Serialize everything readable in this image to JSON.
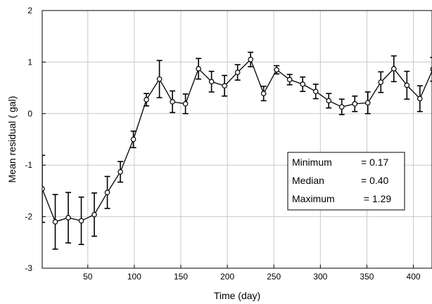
{
  "chart_data": {
    "type": "line",
    "xlabel": "Time (day)",
    "ylabel": "Mean residual ( gal)",
    "xlim": [
      1,
      420
    ],
    "ylim": [
      -3,
      2
    ],
    "grid": true,
    "x_ticks": [
      50,
      100,
      150,
      200,
      250,
      300,
      350,
      400
    ],
    "y_ticks": [
      -3,
      -2,
      -1,
      0,
      1,
      2
    ],
    "series": [
      {
        "x": [
          1,
          15,
          29,
          43,
          57,
          71,
          85,
          99,
          113,
          127,
          141,
          155,
          169,
          183,
          197,
          211,
          225,
          239,
          253,
          267,
          281,
          295,
          309,
          323,
          337,
          351,
          365,
          379,
          393,
          407,
          421
        ],
        "y": [
          -1.46,
          -2.1,
          -2.02,
          -2.08,
          -1.96,
          -1.53,
          -1.13,
          -0.5,
          0.27,
          0.67,
          0.23,
          0.19,
          0.87,
          0.62,
          0.54,
          0.8,
          1.05,
          0.39,
          0.85,
          0.66,
          0.57,
          0.43,
          0.25,
          0.13,
          0.19,
          0.21,
          0.61,
          0.87,
          0.55,
          0.29,
          0.86
        ],
        "err": [
          0.65,
          0.53,
          0.49,
          0.46,
          0.42,
          0.31,
          0.2,
          0.16,
          0.12,
          0.36,
          0.21,
          0.19,
          0.2,
          0.2,
          0.2,
          0.15,
          0.14,
          0.14,
          0.08,
          0.1,
          0.14,
          0.14,
          0.14,
          0.15,
          0.15,
          0.21,
          0.2,
          0.25,
          0.27,
          0.25,
          0.23
        ]
      }
    ],
    "legend_placement": "lower-right",
    "annotation": {
      "rows": [
        {
          "label": "Minimum",
          "value": "= 0.17"
        },
        {
          "label": "Median",
          "value": "= 0.40"
        },
        {
          "label": "Maximum",
          "value": " = 1.29"
        }
      ]
    }
  }
}
